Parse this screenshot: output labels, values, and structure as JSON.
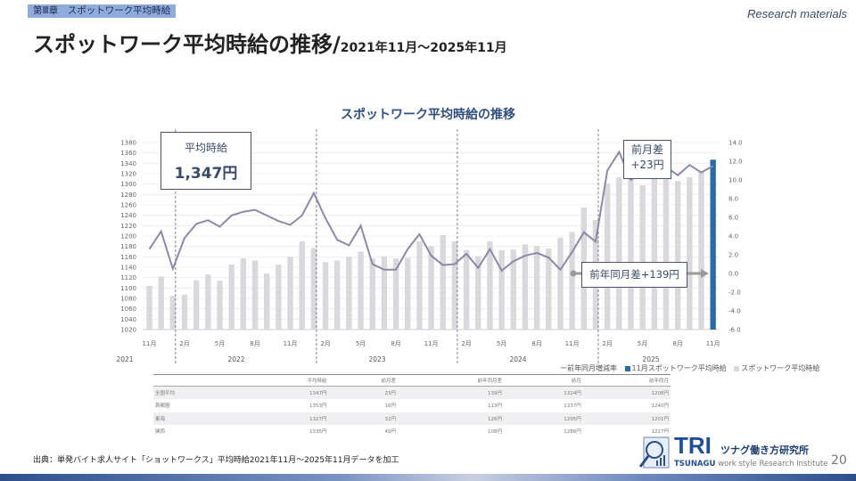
{
  "header": {
    "chapter": "第Ⅲ章　スポットワーク平均時給",
    "research": "Research materials",
    "title": "スポットワーク平均時給の推移/",
    "title_range": "2021年11月～2025年11月"
  },
  "chart_data": {
    "type": "bar+line",
    "title": "スポットワーク平均時給の推移",
    "months": [
      "2021-11",
      "2021-12",
      "2022-01",
      "2022-02",
      "2022-03",
      "2022-04",
      "2022-05",
      "2022-06",
      "2022-07",
      "2022-08",
      "2022-09",
      "2022-10",
      "2022-11",
      "2022-12",
      "2023-01",
      "2023-02",
      "2023-03",
      "2023-04",
      "2023-05",
      "2023-06",
      "2023-07",
      "2023-08",
      "2023-09",
      "2023-10",
      "2023-11",
      "2023-12",
      "2024-01",
      "2024-02",
      "2024-03",
      "2024-04",
      "2024-05",
      "2024-06",
      "2024-07",
      "2024-08",
      "2024-09",
      "2024-10",
      "2024-11",
      "2024-12",
      "2025-01",
      "2025-02",
      "2025-03",
      "2025-04",
      "2025-05",
      "2025-06",
      "2025-07",
      "2025-08",
      "2025-09",
      "2025-10",
      "2025-11"
    ],
    "month_tick_labels": [
      "11月",
      "2月",
      "5月",
      "8月",
      "11月",
      "2月",
      "5月",
      "8月",
      "11月",
      "2月",
      "5月",
      "8月",
      "11月",
      "2月",
      "5月",
      "8月",
      "11月"
    ],
    "year_labels": [
      "2021",
      "2022",
      "2023",
      "2024",
      "2025"
    ],
    "series": [
      {
        "name": "スポットワーク平均時給",
        "axis": "left",
        "type": "bar",
        "color": "#d9d9dd",
        "highlight_color": "#2e6aa6",
        "values": [
          1104,
          1122,
          1085,
          1087,
          1115,
          1126,
          1114,
          1145,
          1157,
          1153,
          1128,
          1145,
          1160,
          1190,
          1177,
          1150,
          1153,
          1160,
          1170,
          1157,
          1161,
          1157,
          1158,
          1190,
          1181,
          1202,
          1190,
          1173,
          1161,
          1190,
          1173,
          1174,
          1184,
          1181,
          1176,
          1197,
          1208,
          1255,
          1231,
          1301,
          1313,
          1312,
          1298,
          1311,
          1313,
          1306,
          1313,
          1324,
          1347
        ]
      },
      {
        "name": "前年同月増減率",
        "axis": "right",
        "type": "line",
        "color": "#8a8aa8",
        "values": [
          2.6,
          4.5,
          0.5,
          3.8,
          5.3,
          5.7,
          5.0,
          6.2,
          6.6,
          6.8,
          6.2,
          5.6,
          5.2,
          6.2,
          8.6,
          5.9,
          3.6,
          3.0,
          5.1,
          1.0,
          0.4,
          0.4,
          2.6,
          4.2,
          1.9,
          0.9,
          1.0,
          2.1,
          0.6,
          2.6,
          0.3,
          1.3,
          1.9,
          2.2,
          1.7,
          0.4,
          2.3,
          4.4,
          3.4,
          11.0,
          13.0,
          10.0,
          11.0,
          11.2,
          11.4,
          10.5,
          11.6,
          10.8,
          11.5
        ]
      }
    ],
    "left_axis": {
      "min": 1020,
      "max": 1380,
      "step": 20
    },
    "right_axis": {
      "min": -6.0,
      "max": 14.0,
      "step": 2.0
    },
    "grid": true,
    "legend": {
      "position": "bottom-right",
      "items": [
        "前年同月増減率",
        "11月スポットワーク平均時給",
        "スポットワーク平均時給"
      ]
    },
    "annotations": {
      "avg_label": "平均時給",
      "avg_value": "1,347円",
      "mom_label": "前月差",
      "mom_value": "+23円",
      "yoy": "前年同月差+139円"
    }
  },
  "table": {
    "headers": [
      "",
      "平均時給",
      "前月差",
      "前年同月差",
      "前月",
      "前年同月"
    ],
    "rows": [
      [
        "全国平均",
        "1347円",
        "23円",
        "139円",
        "1324円",
        "1208円"
      ],
      [
        "首都圏",
        "1353円",
        "16円",
        "113円",
        "1337円",
        "1240円"
      ],
      [
        "東海",
        "1327円",
        "32円",
        "126円",
        "1295円",
        "1201円"
      ],
      [
        "関西",
        "1335円",
        "49円",
        "108円",
        "1286円",
        "1227円"
      ]
    ]
  },
  "footer": {
    "source": "出典：単発バイト求人サイト「ショットワークス」平均時給2021年11月～2025年11月データを加工",
    "page": "20",
    "logo": {
      "mark": "TRI",
      "jp": "ツナグ働き方研究所",
      "en_1": "TSUNAGU",
      "en_2": "work style Research Institute"
    }
  }
}
